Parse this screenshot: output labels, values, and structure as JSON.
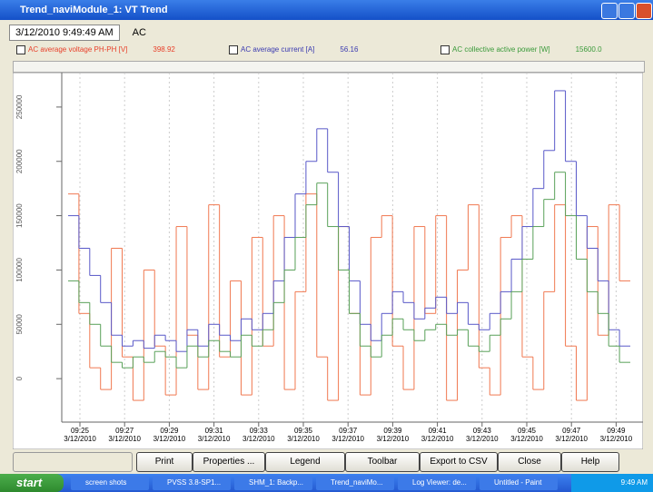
{
  "window": {
    "title": "Trend_naviModule_1: VT Trend"
  },
  "header": {
    "datetime": "3/12/2010  9:49:49 AM",
    "group": "AC"
  },
  "legend": [
    {
      "name": "AC average voltage PH-PH [V]",
      "value": "398.92",
      "color": "#e8402a"
    },
    {
      "name": "AC average current [A]",
      "value": "56.16",
      "color": "#3a3ab0"
    },
    {
      "name": "AC collective active power [W]",
      "value": "15600.0",
      "color": "#3a9a3a"
    }
  ],
  "chart_data": {
    "type": "step-line",
    "ylim": [
      -40000,
      280000
    ],
    "yticks": [
      0,
      50000,
      100000,
      150000,
      200000,
      250000
    ],
    "xticks": [
      {
        "time": "09:25",
        "date": "3/12/2010"
      },
      {
        "time": "09:27",
        "date": "3/12/2010"
      },
      {
        "time": "09:29",
        "date": "3/12/2010"
      },
      {
        "time": "09:31",
        "date": "3/12/2010"
      },
      {
        "time": "09:33",
        "date": "3/12/2010"
      },
      {
        "time": "09:35",
        "date": "3/12/2010"
      },
      {
        "time": "09:37",
        "date": "3/12/2010"
      },
      {
        "time": "09:39",
        "date": "3/12/2010"
      },
      {
        "time": "09:41",
        "date": "3/12/2010"
      },
      {
        "time": "09:43",
        "date": "3/12/2010"
      },
      {
        "time": "09:45",
        "date": "3/12/2010"
      },
      {
        "time": "09:47",
        "date": "3/12/2010"
      },
      {
        "time": "09:49",
        "date": "3/12/2010"
      }
    ],
    "grid": true,
    "series": [
      {
        "color": "#f07850",
        "values": [
          170000,
          60000,
          10000,
          -10000,
          120000,
          20000,
          -20000,
          100000,
          30000,
          -15000,
          140000,
          40000,
          -10000,
          160000,
          20000,
          90000,
          -15000,
          130000,
          30000,
          150000,
          -10000,
          80000,
          170000,
          20000,
          -20000,
          140000,
          60000,
          -15000,
          130000,
          150000,
          30000,
          -10000,
          140000,
          60000,
          150000,
          -20000,
          100000,
          160000,
          10000,
          -15000,
          130000,
          150000,
          20000,
          -10000,
          80000,
          160000,
          30000,
          -20000,
          140000,
          40000,
          160000,
          90000
        ]
      },
      {
        "color": "#5858c8",
        "values": [
          150000,
          120000,
          95000,
          70000,
          40000,
          30000,
          35000,
          28000,
          40000,
          35000,
          25000,
          45000,
          30000,
          50000,
          40000,
          35000,
          55000,
          45000,
          60000,
          90000,
          130000,
          170000,
          200000,
          230000,
          190000,
          140000,
          90000,
          50000,
          35000,
          60000,
          80000,
          70000,
          55000,
          65000,
          75000,
          60000,
          70000,
          50000,
          45000,
          60000,
          80000,
          110000,
          140000,
          175000,
          210000,
          265000,
          200000,
          150000,
          120000,
          90000,
          45000,
          30000
        ]
      },
      {
        "color": "#58a058",
        "values": [
          90000,
          70000,
          50000,
          30000,
          15000,
          10000,
          20000,
          15000,
          25000,
          20000,
          10000,
          30000,
          20000,
          35000,
          25000,
          20000,
          40000,
          30000,
          45000,
          70000,
          100000,
          130000,
          160000,
          180000,
          140000,
          100000,
          60000,
          30000,
          20000,
          40000,
          55000,
          45000,
          35000,
          45000,
          50000,
          40000,
          45000,
          30000,
          25000,
          40000,
          55000,
          80000,
          110000,
          140000,
          165000,
          190000,
          150000,
          110000,
          80000,
          60000,
          30000,
          15000
        ]
      }
    ]
  },
  "buttons": [
    "Print",
    "Properties ...",
    "Legend",
    "Toolbar",
    "Export to CSV",
    "Close",
    "Help"
  ],
  "taskbar": {
    "start": "start",
    "items": [
      "screen shots",
      "PVSS 3.8-SP1...",
      "SHM_1: Backp...",
      "Trend_naviMo...",
      "Log Viewer: de...",
      "Untitled - Paint"
    ],
    "clock": "9:49 AM"
  }
}
